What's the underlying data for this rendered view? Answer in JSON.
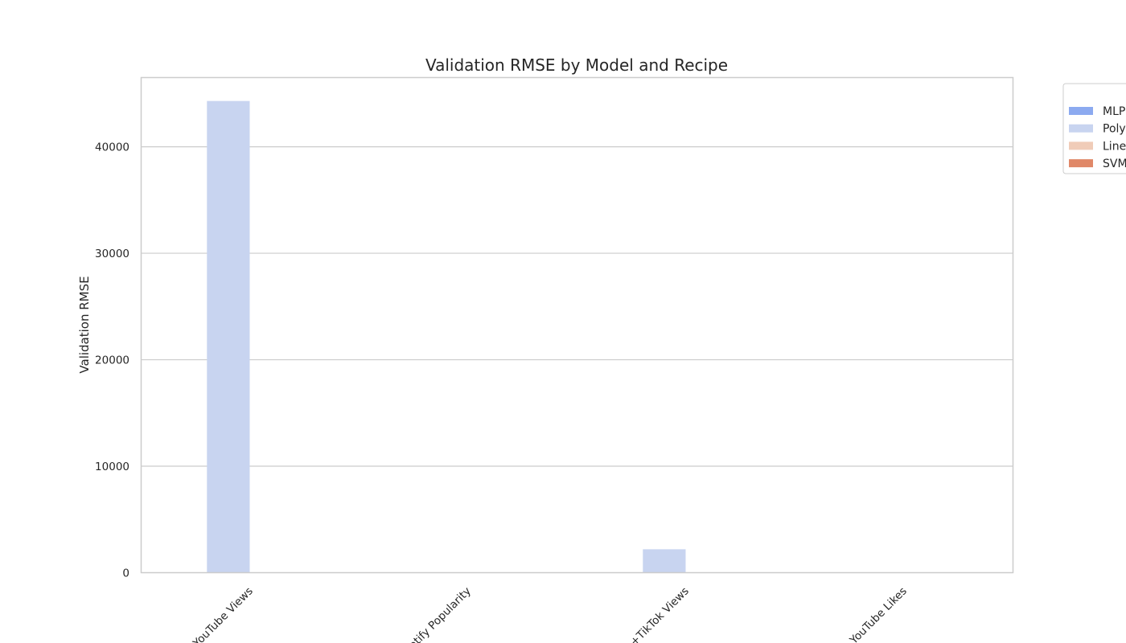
{
  "chart_data": {
    "type": "bar",
    "title": "Validation RMSE by Model and Recipe",
    "xlabel": "",
    "ylabel": "Validation RMSE",
    "ylim": [
      0,
      46500
    ],
    "yticks": [
      0,
      10000,
      20000,
      30000,
      40000
    ],
    "grid": true,
    "legend_position": "outside-right",
    "categories": [
      "YouTube Views",
      "Spotify Popularity",
      "YouTube+TikTok Views",
      "YouTube Likes"
    ],
    "category_labels_visible": [
      "YouTube Views",
      "otify Popularity",
      "+TikTok Views",
      "YouTube Likes"
    ],
    "series": [
      {
        "name": "MLP",
        "legend_label_visible": "MLP",
        "color": "#8caaf0",
        "values": [
          0,
          0,
          0,
          0
        ]
      },
      {
        "name": "Poly",
        "legend_label_visible": "Poly",
        "color": "#c8d4f0",
        "values": [
          44300,
          0,
          2200,
          0
        ]
      },
      {
        "name": "Line",
        "legend_label_visible": "Line",
        "color": "#f0ccb8",
        "values": [
          0,
          0,
          0,
          0
        ]
      },
      {
        "name": "SVM",
        "legend_label_visible": "SVM",
        "color": "#e08868",
        "values": [
          0,
          0,
          0,
          0
        ]
      }
    ]
  }
}
